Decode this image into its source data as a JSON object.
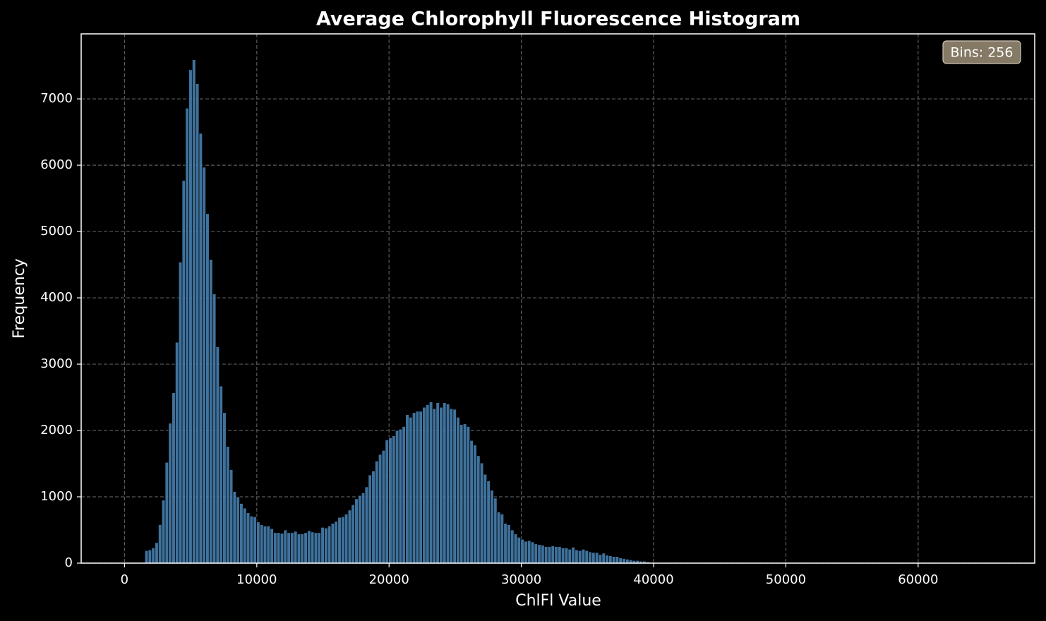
{
  "chart_data": {
    "type": "histogram",
    "title": "Average Chlorophyll Fluorescence Histogram",
    "xlabel": "ChlFl Value",
    "ylabel": "Frequency",
    "annotation": "Bins: 256",
    "color": "#4a86b8",
    "edgecolor": "#000000",
    "xlim": [
      -3277,
      68813
    ],
    "ylim": [
      0,
      7980
    ],
    "xticks": [
      0,
      10000,
      20000,
      30000,
      40000,
      50000,
      60000
    ],
    "yticks": [
      0,
      1000,
      2000,
      3000,
      4000,
      5000,
      6000,
      7000
    ],
    "grid": true,
    "legend": "upper right",
    "bins": [
      0,
      256,
      512,
      768,
      1024,
      1280,
      1536,
      1792,
      2048,
      2304,
      2560,
      2816,
      3072,
      3328,
      3584,
      3840,
      4096,
      4352,
      4608,
      4864,
      5120,
      5376,
      5632,
      5888,
      6144,
      6400,
      6656,
      6912,
      7168,
      7424,
      7680,
      7936,
      8192,
      8448,
      8704,
      8960,
      9216,
      9472,
      9728,
      9984,
      10240,
      10496,
      10752,
      11008,
      11264,
      11520,
      11776,
      12032,
      12288,
      12544,
      12800,
      13056,
      13312,
      13568,
      13824,
      14080,
      14336,
      14592,
      14848,
      15104,
      15360,
      15616,
      15872,
      16128,
      16384,
      16640,
      16896,
      17152,
      17408,
      17664,
      17920,
      18176,
      18432,
      18688,
      18944,
      19200,
      19456,
      19712,
      19968,
      20224,
      20480,
      20736,
      20992,
      21248,
      21504,
      21760,
      22016,
      22272,
      22528,
      22784,
      23040,
      23296,
      23552,
      23808,
      24064,
      24320,
      24576,
      24832,
      25088,
      25344,
      25600,
      25856,
      26112,
      26368,
      26624,
      26880,
      27136,
      27392,
      27648,
      27904,
      28160,
      28416,
      28672,
      28928,
      29184,
      29440,
      29696,
      29952,
      30208,
      30464,
      30720,
      30976,
      31232,
      31488,
      31744,
      32000,
      32256,
      32512,
      32768,
      33024,
      33280,
      33536,
      33792,
      34048,
      34304,
      34560,
      34816,
      35072,
      35328,
      35584,
      35840,
      36096,
      36352,
      36608,
      36864,
      37120,
      37376,
      37632,
      37888,
      38144,
      38400,
      38656,
      38912,
      39168,
      39424,
      39680,
      39936,
      40192,
      40448,
      40704,
      40960,
      41216,
      41472,
      41728,
      41984,
      42240,
      42496,
      42752,
      43008,
      43264,
      43520,
      43776,
      44032,
      44288,
      44544,
      44800,
      45056,
      45312,
      45568,
      45824,
      46080,
      46336,
      46592,
      46848,
      47104,
      47360,
      47616,
      47872,
      48128,
      48384,
      48640,
      48896,
      49152,
      49408,
      49664,
      49920,
      50176,
      50432,
      50688,
      50944,
      51200,
      51456,
      51712,
      51968,
      52224,
      52480,
      52736,
      52992,
      53248,
      53504,
      53760,
      54016,
      54272,
      54528,
      54784,
      55040,
      55296,
      55552,
      55808,
      56064,
      56320,
      56576,
      56832,
      57088,
      57344,
      57600,
      57856,
      58112,
      58368,
      58624,
      58880,
      59136,
      59392,
      59648,
      59904,
      60160,
      60416,
      60672,
      60928,
      61184,
      61440,
      61696,
      61952,
      62208,
      62464,
      62720,
      62976,
      63232,
      63488,
      63744,
      64000,
      64256,
      64512,
      64768,
      65024,
      65280,
      65536
    ],
    "counts": [
      0,
      0,
      0,
      0,
      0,
      0,
      190,
      200,
      230,
      310,
      580,
      950,
      1520,
      2110,
      2570,
      3330,
      4540,
      5770,
      6860,
      7440,
      7590,
      7230,
      6480,
      5970,
      5270,
      4580,
      4060,
      3260,
      2670,
      2270,
      1760,
      1410,
      1080,
      1000,
      900,
      830,
      760,
      710,
      700,
      620,
      580,
      560,
      560,
      520,
      460,
      460,
      450,
      500,
      460,
      460,
      480,
      440,
      440,
      460,
      490,
      470,
      460,
      460,
      540,
      530,
      560,
      600,
      630,
      690,
      700,
      740,
      800,
      880,
      970,
      1020,
      1060,
      1150,
      1330,
      1390,
      1540,
      1640,
      1700,
      1860,
      1890,
      1920,
      2000,
      2020,
      2060,
      2240,
      2200,
      2270,
      2290,
      2290,
      2350,
      2390,
      2430,
      2330,
      2420,
      2350,
      2420,
      2400,
      2330,
      2320,
      2200,
      2090,
      2100,
      2060,
      1850,
      1780,
      1620,
      1510,
      1340,
      1240,
      1100,
      980,
      770,
      740,
      600,
      580,
      500,
      440,
      390,
      360,
      330,
      340,
      320,
      290,
      280,
      270,
      250,
      250,
      260,
      250,
      250,
      230,
      230,
      210,
      240,
      200,
      190,
      210,
      190,
      170,
      160,
      160,
      130,
      150,
      120,
      110,
      100,
      100,
      80,
      70,
      60,
      50,
      40,
      40,
      30,
      30,
      20,
      10,
      10,
      10,
      5,
      5,
      5,
      0,
      0,
      0,
      0,
      0,
      0,
      0,
      0,
      0,
      0,
      0,
      0,
      0,
      0,
      0,
      0,
      0,
      0,
      0,
      0,
      0,
      0,
      0,
      0,
      0,
      0,
      0,
      0,
      0,
      0,
      0,
      0,
      0,
      0,
      0,
      0,
      0,
      0,
      0,
      0,
      0,
      0,
      0,
      0,
      0,
      0,
      0,
      0,
      0,
      0,
      0,
      0,
      0,
      0,
      0,
      0,
      0,
      0,
      0,
      0,
      0,
      0,
      0,
      0,
      0,
      0,
      0,
      0,
      0,
      0,
      0,
      0,
      0,
      0,
      0,
      0,
      0,
      0,
      0,
      0,
      0,
      0,
      0,
      0,
      0,
      0,
      0,
      0,
      0,
      0,
      0,
      0,
      0,
      0,
      0
    ]
  }
}
